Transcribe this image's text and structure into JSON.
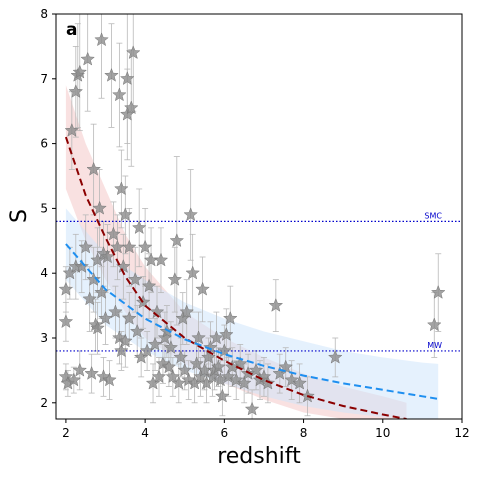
{
  "chart_data": {
    "type": "scatter",
    "panel_label": "a",
    "xlabel": "redshift",
    "ylabel": "S",
    "xlim": [
      1.75,
      12
    ],
    "ylim": [
      1.75,
      8
    ],
    "xticks": [
      2,
      4,
      6,
      8,
      10,
      12
    ],
    "yticks": [
      2,
      3,
      4,
      5,
      6,
      7,
      8
    ],
    "grid": false,
    "reference_lines": [
      {
        "label": "SMC",
        "y": 4.8,
        "color": "#0000cc"
      },
      {
        "label": "MW",
        "y": 2.8,
        "color": "#0000cc"
      }
    ],
    "fits": [
      {
        "color": "#8b0000",
        "band_color": "#f4c9c9",
        "x": [
          2.0,
          2.5,
          3.0,
          3.5,
          4.0,
          5.0,
          6.0,
          7.0,
          8.0,
          9.0,
          10.0,
          10.6
        ],
        "y": [
          6.1,
          5.2,
          4.55,
          3.95,
          3.5,
          3.0,
          2.65,
          2.35,
          2.12,
          1.95,
          1.82,
          1.75
        ],
        "band_lower": [
          5.3,
          4.5,
          3.9,
          3.4,
          3.0,
          2.6,
          2.3,
          2.05,
          1.85,
          1.75,
          1.75,
          1.75
        ],
        "band_upper": [
          6.9,
          6.0,
          5.3,
          4.6,
          4.1,
          3.4,
          3.0,
          2.7,
          2.45,
          2.25,
          2.1,
          2.0
        ]
      },
      {
        "color": "#1e8ff0",
        "band_color": "#cfe6fb",
        "x": [
          2.0,
          3.0,
          4.0,
          5.0,
          6.0,
          7.0,
          8.0,
          9.0,
          10.0,
          11.0,
          11.4
        ],
        "y": [
          4.45,
          3.75,
          3.3,
          2.98,
          2.75,
          2.57,
          2.42,
          2.3,
          2.2,
          2.1,
          2.06
        ],
        "band_lower": [
          3.9,
          3.2,
          2.8,
          2.5,
          2.3,
          2.1,
          1.95,
          1.85,
          1.78,
          1.75,
          1.75
        ],
        "band_upper": [
          5.0,
          4.3,
          3.9,
          3.55,
          3.3,
          3.1,
          2.95,
          2.8,
          2.7,
          2.62,
          2.6
        ]
      }
    ],
    "points": [
      {
        "x": 2.0,
        "y": 3.25,
        "e": 0.3
      },
      {
        "x": 2.0,
        "y": 3.75,
        "e": 0.35
      },
      {
        "x": 2.0,
        "y": 2.4,
        "e": 0.2
      },
      {
        "x": 2.05,
        "y": 2.3,
        "e": 0.2
      },
      {
        "x": 2.1,
        "y": 4.0,
        "e": 0.4
      },
      {
        "x": 2.15,
        "y": 6.2,
        "e": 0.6
      },
      {
        "x": 2.2,
        "y": 2.35,
        "e": 0.2
      },
      {
        "x": 2.25,
        "y": 4.1,
        "e": 0.5
      },
      {
        "x": 2.25,
        "y": 6.8,
        "e": 0.7
      },
      {
        "x": 2.3,
        "y": 7.05,
        "e": 0.8
      },
      {
        "x": 2.35,
        "y": 7.1,
        "e": 0.9
      },
      {
        "x": 2.35,
        "y": 2.5,
        "e": 0.3
      },
      {
        "x": 2.4,
        "y": 4.1,
        "e": 0.4
      },
      {
        "x": 2.5,
        "y": 4.4,
        "e": 0.5
      },
      {
        "x": 2.55,
        "y": 7.3,
        "e": 0.8
      },
      {
        "x": 2.6,
        "y": 3.6,
        "e": 0.5
      },
      {
        "x": 2.65,
        "y": 2.45,
        "e": 0.3
      },
      {
        "x": 2.7,
        "y": 3.9,
        "e": 0.5
      },
      {
        "x": 2.7,
        "y": 5.6,
        "e": 0.7
      },
      {
        "x": 2.75,
        "y": 3.2,
        "e": 0.4
      },
      {
        "x": 2.8,
        "y": 3.15,
        "e": 0.4
      },
      {
        "x": 2.8,
        "y": 4.2,
        "e": 0.5
      },
      {
        "x": 2.85,
        "y": 5.0,
        "e": 0.6
      },
      {
        "x": 2.9,
        "y": 7.6,
        "e": 0.9
      },
      {
        "x": 2.9,
        "y": 3.7,
        "e": 0.4
      },
      {
        "x": 2.95,
        "y": 4.3,
        "e": 0.5
      },
      {
        "x": 2.95,
        "y": 2.4,
        "e": 0.3
      },
      {
        "x": 3.0,
        "y": 3.3,
        "e": 0.4
      },
      {
        "x": 3.05,
        "y": 4.25,
        "e": 0.5
      },
      {
        "x": 3.1,
        "y": 2.35,
        "e": 0.3
      },
      {
        "x": 3.15,
        "y": 7.05,
        "e": 0.8
      },
      {
        "x": 3.2,
        "y": 4.6,
        "e": 0.5
      },
      {
        "x": 3.25,
        "y": 3.4,
        "e": 0.4
      },
      {
        "x": 3.3,
        "y": 4.4,
        "e": 0.5
      },
      {
        "x": 3.35,
        "y": 6.75,
        "e": 0.8
      },
      {
        "x": 3.35,
        "y": 3.0,
        "e": 0.4
      },
      {
        "x": 3.4,
        "y": 5.3,
        "e": 0.6
      },
      {
        "x": 3.4,
        "y": 2.8,
        "e": 0.3
      },
      {
        "x": 3.45,
        "y": 4.1,
        "e": 0.5
      },
      {
        "x": 3.5,
        "y": 4.9,
        "e": 0.6
      },
      {
        "x": 3.5,
        "y": 2.95,
        "e": 0.4
      },
      {
        "x": 3.55,
        "y": 6.45,
        "e": 0.7
      },
      {
        "x": 3.55,
        "y": 7.0,
        "e": 1.0
      },
      {
        "x": 3.6,
        "y": 4.4,
        "e": 0.6
      },
      {
        "x": 3.6,
        "y": 3.3,
        "e": 0.4
      },
      {
        "x": 3.65,
        "y": 6.55,
        "e": 0.9
      },
      {
        "x": 3.7,
        "y": 7.4,
        "e": 0.9
      },
      {
        "x": 3.75,
        "y": 3.9,
        "e": 0.5
      },
      {
        "x": 3.8,
        "y": 3.1,
        "e": 0.4
      },
      {
        "x": 3.85,
        "y": 4.7,
        "e": 0.6
      },
      {
        "x": 3.9,
        "y": 2.7,
        "e": 0.3
      },
      {
        "x": 3.95,
        "y": 3.55,
        "e": 0.4
      },
      {
        "x": 4.0,
        "y": 4.4,
        "e": 0.6
      },
      {
        "x": 4.05,
        "y": 2.8,
        "e": 0.3
      },
      {
        "x": 4.1,
        "y": 3.8,
        "e": 0.5
      },
      {
        "x": 4.15,
        "y": 4.2,
        "e": 0.5
      },
      {
        "x": 4.2,
        "y": 2.3,
        "e": 0.3
      },
      {
        "x": 4.25,
        "y": 2.9,
        "e": 0.4
      },
      {
        "x": 4.3,
        "y": 3.4,
        "e": 0.4
      },
      {
        "x": 4.35,
        "y": 2.4,
        "e": 0.3
      },
      {
        "x": 4.4,
        "y": 4.2,
        "e": 0.5
      },
      {
        "x": 4.45,
        "y": 2.6,
        "e": 0.3
      },
      {
        "x": 4.5,
        "y": 3.0,
        "e": 0.4
      },
      {
        "x": 4.55,
        "y": 3.1,
        "e": 0.4
      },
      {
        "x": 4.6,
        "y": 2.55,
        "e": 0.3
      },
      {
        "x": 4.65,
        "y": 2.85,
        "e": 0.4
      },
      {
        "x": 4.7,
        "y": 2.4,
        "e": 0.3
      },
      {
        "x": 4.75,
        "y": 3.9,
        "e": 0.5
      },
      {
        "x": 4.8,
        "y": 4.5,
        "e": 1.3
      },
      {
        "x": 4.85,
        "y": 2.3,
        "e": 0.3
      },
      {
        "x": 4.9,
        "y": 2.7,
        "e": 0.3
      },
      {
        "x": 4.95,
        "y": 3.3,
        "e": 0.4
      },
      {
        "x": 5.0,
        "y": 2.5,
        "e": 0.3
      },
      {
        "x": 5.05,
        "y": 3.4,
        "e": 0.5
      },
      {
        "x": 5.1,
        "y": 2.35,
        "e": 0.3
      },
      {
        "x": 5.15,
        "y": 4.9,
        "e": 0.7
      },
      {
        "x": 5.2,
        "y": 4.0,
        "e": 0.6
      },
      {
        "x": 5.25,
        "y": 2.3,
        "e": 0.3
      },
      {
        "x": 5.3,
        "y": 2.6,
        "e": 0.3
      },
      {
        "x": 5.35,
        "y": 3.0,
        "e": 0.4
      },
      {
        "x": 5.4,
        "y": 2.4,
        "e": 0.3
      },
      {
        "x": 5.45,
        "y": 3.75,
        "e": 0.5
      },
      {
        "x": 5.5,
        "y": 2.5,
        "e": 0.3
      },
      {
        "x": 5.55,
        "y": 2.3,
        "e": 0.3
      },
      {
        "x": 5.6,
        "y": 2.7,
        "e": 0.3
      },
      {
        "x": 5.65,
        "y": 2.85,
        "e": 0.4
      },
      {
        "x": 5.7,
        "y": 2.4,
        "e": 0.3
      },
      {
        "x": 5.75,
        "y": 2.5,
        "e": 0.3
      },
      {
        "x": 5.8,
        "y": 3.0,
        "e": 0.4
      },
      {
        "x": 5.85,
        "y": 2.55,
        "e": 0.3
      },
      {
        "x": 5.9,
        "y": 2.35,
        "e": 0.3
      },
      {
        "x": 5.95,
        "y": 2.1,
        "e": 0.3
      },
      {
        "x": 6.0,
        "y": 2.8,
        "e": 0.4
      },
      {
        "x": 6.05,
        "y": 3.05,
        "e": 0.4
      },
      {
        "x": 6.1,
        "y": 2.4,
        "e": 0.3
      },
      {
        "x": 6.15,
        "y": 3.3,
        "e": 0.5
      },
      {
        "x": 6.2,
        "y": 2.55,
        "e": 0.3
      },
      {
        "x": 6.3,
        "y": 2.35,
        "e": 0.3
      },
      {
        "x": 6.4,
        "y": 2.6,
        "e": 0.3
      },
      {
        "x": 6.5,
        "y": 2.3,
        "e": 0.3
      },
      {
        "x": 6.6,
        "y": 2.45,
        "e": 0.3
      },
      {
        "x": 6.7,
        "y": 1.9,
        "e": 0.3
      },
      {
        "x": 6.8,
        "y": 2.5,
        "e": 0.3
      },
      {
        "x": 6.9,
        "y": 2.35,
        "e": 0.3
      },
      {
        "x": 7.0,
        "y": 2.4,
        "e": 0.3
      },
      {
        "x": 7.1,
        "y": 2.3,
        "e": 0.3
      },
      {
        "x": 7.3,
        "y": 3.5,
        "e": 0.4
      },
      {
        "x": 7.4,
        "y": 2.45,
        "e": 0.3
      },
      {
        "x": 7.55,
        "y": 2.55,
        "e": 0.3
      },
      {
        "x": 7.7,
        "y": 2.35,
        "e": 0.3
      },
      {
        "x": 7.9,
        "y": 2.3,
        "e": 0.3
      },
      {
        "x": 8.1,
        "y": 2.1,
        "e": 0.3
      },
      {
        "x": 8.8,
        "y": 2.7,
        "e": 0.3
      },
      {
        "x": 11.3,
        "y": 3.2,
        "e": 0.5
      },
      {
        "x": 11.4,
        "y": 3.7,
        "e": 0.6
      }
    ]
  }
}
